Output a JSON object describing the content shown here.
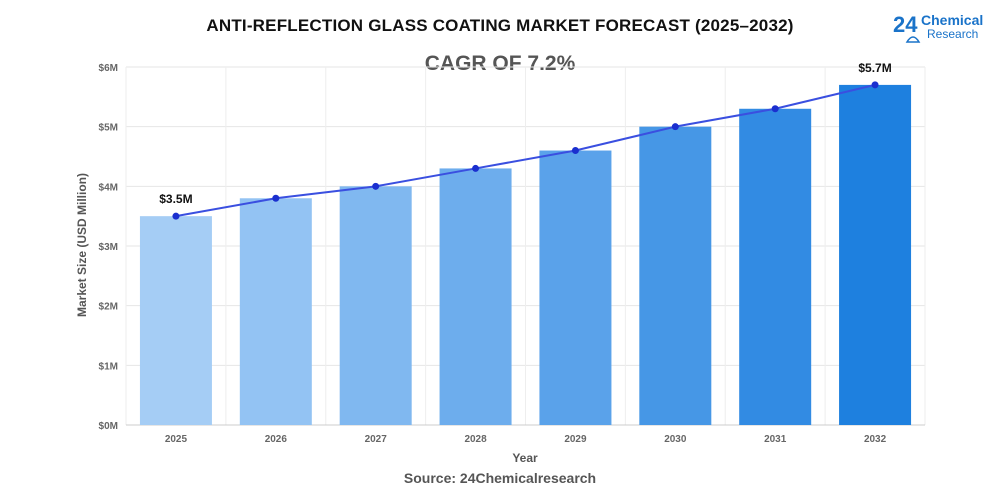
{
  "header": {
    "title": "ANTI-REFLECTION GLASS COATING MARKET FORECAST (2025–2032)",
    "cagr": "CAGR OF 7.2%"
  },
  "logo": {
    "number": "24",
    "line1": "Chemical",
    "line2": "Research",
    "icon": "flask-icon",
    "color": "#1a73c9"
  },
  "source": "Source: 24Chemicalresearch",
  "chart_data": {
    "type": "bar",
    "categories": [
      "2025",
      "2026",
      "2027",
      "2028",
      "2029",
      "2030",
      "2031",
      "2032"
    ],
    "values": [
      3.5,
      3.8,
      4.0,
      4.3,
      4.6,
      5.0,
      5.3,
      5.7
    ],
    "trend_line": true,
    "xlabel": "Year",
    "ylabel": "Market Size (USD Million)",
    "ylim": [
      0,
      6
    ],
    "yticks": [
      0,
      1,
      2,
      3,
      4,
      5,
      6
    ],
    "ytick_labels": [
      "$0M",
      "$1M",
      "$2M",
      "$3M",
      "$4M",
      "$5M",
      "$6M"
    ],
    "data_labels": [
      {
        "index": 0,
        "text": "$3.5M"
      },
      {
        "index": 7,
        "text": "$5.7M"
      }
    ],
    "bar_colors": [
      "#a5cdf5",
      "#93c3f3",
      "#80b8f0",
      "#6daded",
      "#5aa2ea",
      "#4697e6",
      "#328be3",
      "#1e80df"
    ],
    "line_color": "#3a4fe0",
    "marker_color": "#1a2fcf",
    "grid": true
  }
}
